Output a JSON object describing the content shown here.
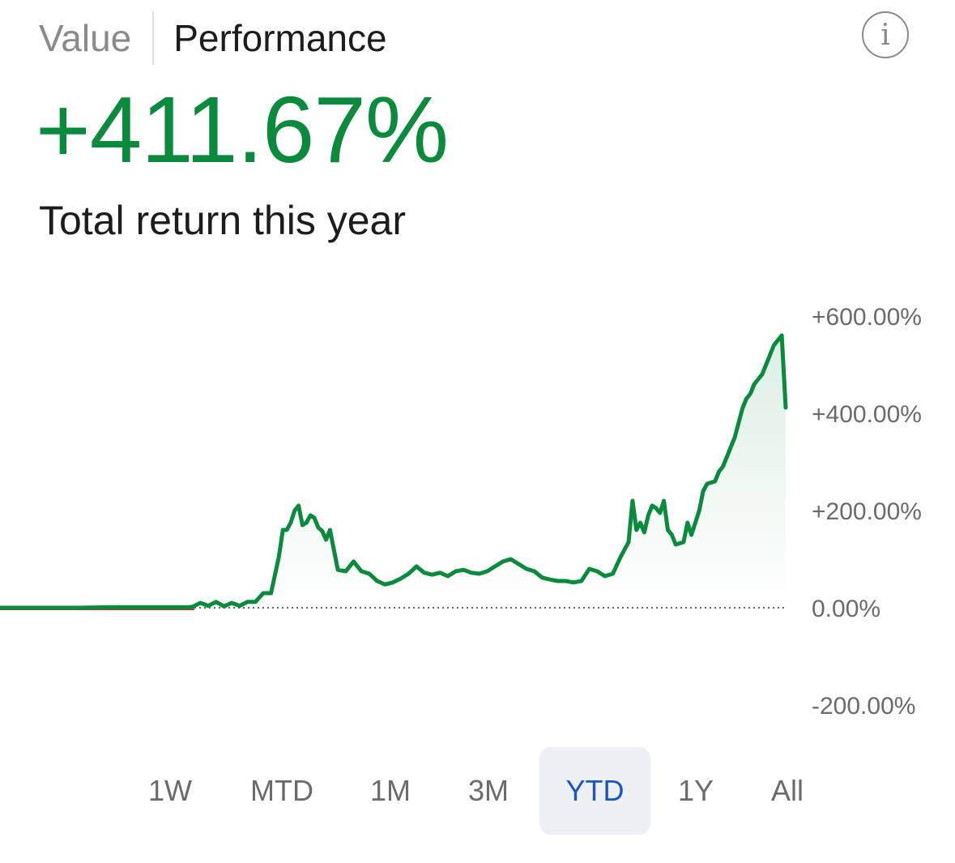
{
  "header": {
    "tabs": [
      {
        "label": "Value",
        "active": false
      },
      {
        "label": "Performance",
        "active": true
      }
    ],
    "info_icon": "info-icon"
  },
  "summary": {
    "total_return": "+411.67%",
    "caption": "Total return this year",
    "color": "#0a8a3c"
  },
  "chart_data": {
    "type": "area",
    "ylim": [
      -200,
      600
    ],
    "yticks": [
      "+600.00%",
      "+400.00%",
      "+200.00%",
      "0.00%",
      "-200.00%"
    ],
    "ytick_values": [
      600,
      400,
      200,
      0,
      -200
    ],
    "baseline": 0,
    "series": [
      {
        "color": "#0a8a3c",
        "x": [
          0,
          0.03,
          0.06,
          0.1,
          0.14,
          0.17,
          0.2,
          0.24,
          0.245,
          0.255,
          0.265,
          0.275,
          0.285,
          0.295,
          0.305,
          0.315,
          0.325,
          0.335,
          0.345,
          0.355,
          0.36,
          0.365,
          0.37,
          0.375,
          0.38,
          0.385,
          0.39,
          0.395,
          0.4,
          0.405,
          0.41,
          0.415,
          0.42,
          0.43,
          0.44,
          0.45,
          0.46,
          0.47,
          0.48,
          0.49,
          0.5,
          0.51,
          0.52,
          0.53,
          0.54,
          0.55,
          0.56,
          0.57,
          0.58,
          0.59,
          0.6,
          0.61,
          0.62,
          0.63,
          0.64,
          0.65,
          0.66,
          0.67,
          0.68,
          0.69,
          0.7,
          0.71,
          0.72,
          0.73,
          0.74,
          0.75,
          0.76,
          0.77,
          0.78,
          0.79,
          0.8,
          0.805,
          0.81,
          0.815,
          0.82,
          0.825,
          0.83,
          0.835,
          0.84,
          0.845,
          0.85,
          0.855,
          0.86,
          0.87,
          0.875,
          0.88,
          0.89,
          0.895,
          0.9,
          0.91,
          0.915,
          0.92,
          0.925,
          0.93,
          0.935,
          0.94,
          0.945,
          0.95,
          0.955,
          0.96,
          0.965,
          0.97,
          0.975,
          0.98,
          0.985,
          0.99,
          0.995,
          1.0
        ],
        "values": [
          0,
          0,
          0,
          0,
          1,
          1,
          1,
          1,
          2,
          10,
          4,
          12,
          3,
          10,
          4,
          12,
          12,
          30,
          30,
          105,
          160,
          160,
          175,
          200,
          210,
          170,
          175,
          190,
          185,
          165,
          158,
          140,
          160,
          78,
          75,
          95,
          75,
          70,
          55,
          48,
          52,
          60,
          70,
          85,
          72,
          68,
          72,
          65,
          75,
          78,
          72,
          70,
          75,
          85,
          95,
          100,
          90,
          80,
          75,
          62,
          58,
          55,
          55,
          52,
          55,
          80,
          75,
          65,
          70,
          105,
          135,
          220,
          160,
          175,
          155,
          190,
          210,
          205,
          195,
          220,
          160,
          150,
          130,
          135,
          175,
          150,
          200,
          240,
          255,
          260,
          280,
          290,
          310,
          330,
          350,
          380,
          410,
          430,
          440,
          460,
          470,
          480,
          500,
          520,
          540,
          550,
          560,
          411.67
        ]
      }
    ]
  },
  "ranges": [
    {
      "label": "1W",
      "active": false
    },
    {
      "label": "MTD",
      "active": false
    },
    {
      "label": "1M",
      "active": false
    },
    {
      "label": "3M",
      "active": false
    },
    {
      "label": "YTD",
      "active": true
    },
    {
      "label": "1Y",
      "active": false
    },
    {
      "label": "All",
      "active": false
    }
  ],
  "colors": {
    "positive": "#0a8a3c",
    "negative": "#d32f2f",
    "accent": "#1a55c4"
  }
}
